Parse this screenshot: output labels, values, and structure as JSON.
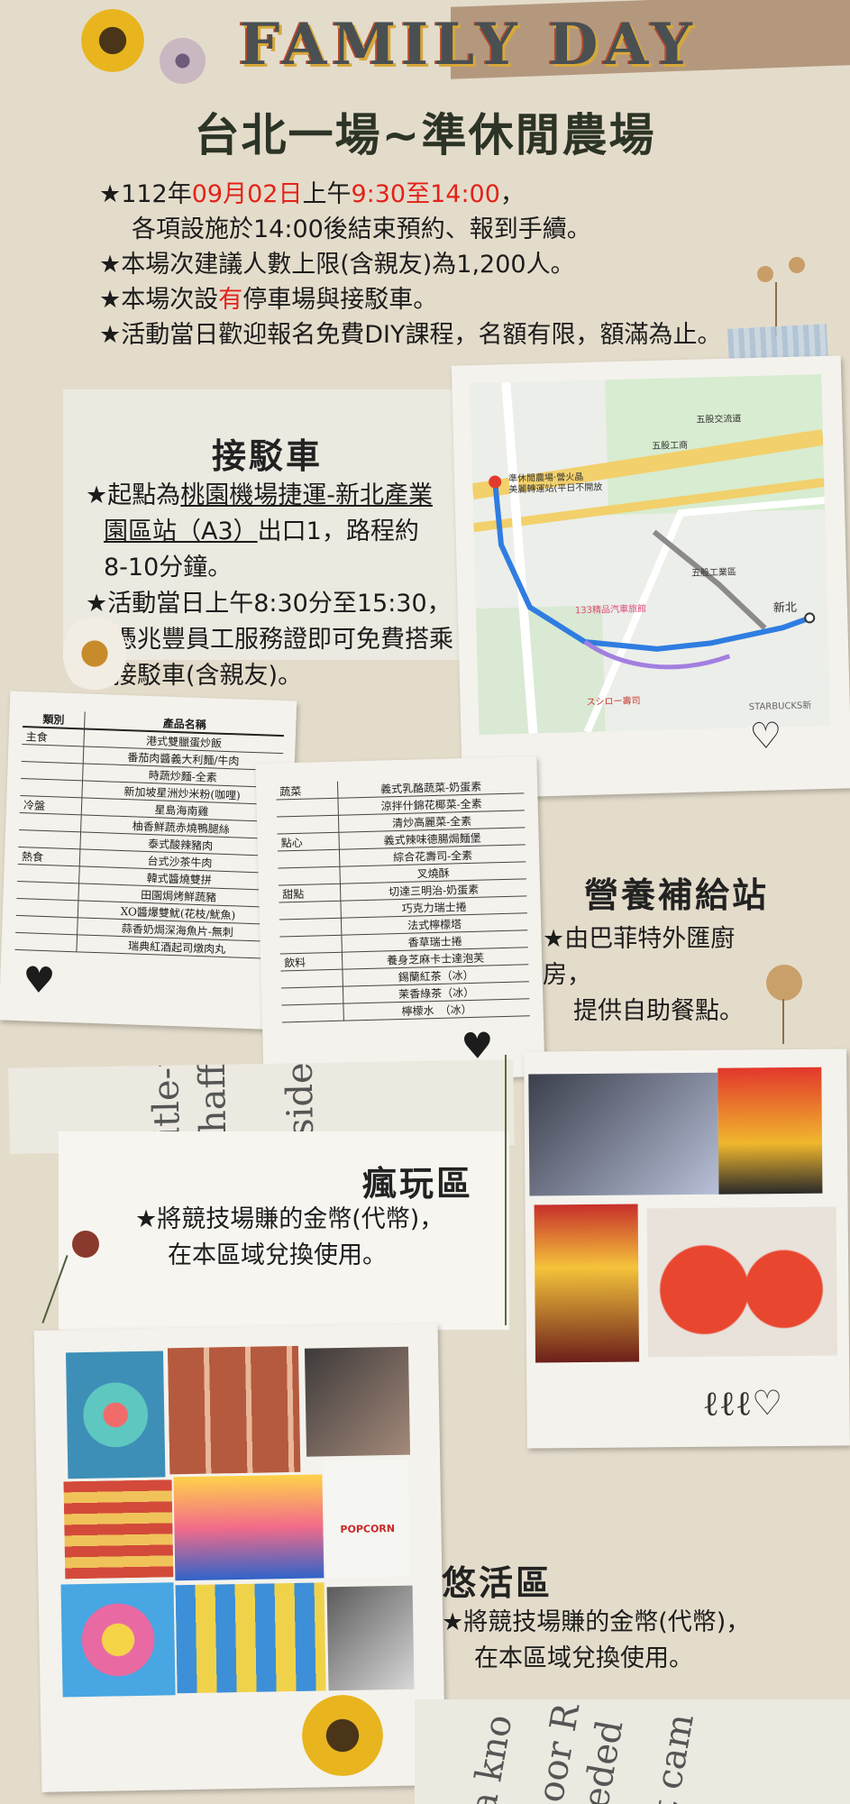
{
  "banner": {
    "title": "FAMILY DAY"
  },
  "page_title": "台北一場~準休閒農場",
  "intro": {
    "line1_a": "★112年",
    "line1_date": "09月02日",
    "line1_b": "上午",
    "line1_time": "9:30至14:00",
    "line1_c": "，",
    "line2": "各項設施於14:00後結束預約、報到手續。",
    "line3": "★本場次建議人數上限(含親友)為1,200人。",
    "line4_a": "★本場次設",
    "line4_red": "有",
    "line4_b": "停車場與接駁車。",
    "line5": "★活動當日歡迎報名免費DIY課程，名額有限，額滿為止。"
  },
  "shuttle": {
    "title": "接駁車",
    "p1_a": "★起點為",
    "p1_link1": "桃園機場捷運-新北產業",
    "p1_link2": "園區站（A3）",
    "p1_b": "出口1，路程約",
    "p1_c": "8-10分鐘。",
    "p2_a": "★活動當日上午8:30分至15:30，",
    "p2_b": "憑兆豐員工服務證即可免費搭乘",
    "p2_c": "接駁車(含親友)。"
  },
  "map": {
    "labels": {
      "station": "新北",
      "farm": "準休閒農場·營火晶",
      "farm2": "美麗轉運站(平日不開放",
      "park": "五股工商",
      "district": "五股工業區",
      "store": "STARBUCKS新",
      "hospital": "133精品汽車旅館",
      "sushi": "スシロー壽司",
      "road1": "五股交流道"
    }
  },
  "menu": {
    "header_cat": "類別",
    "header_item": "產品名稱",
    "left_rows": [
      {
        "cat": "主食",
        "item": "港式雙臘蛋炒飯"
      },
      {
        "cat": "",
        "item": "番茄肉醬義大利麵/牛肉"
      },
      {
        "cat": "",
        "item": "時蔬炒麵-全素"
      },
      {
        "cat": "",
        "item": "新加坡星洲炒米粉(咖哩)"
      },
      {
        "cat": "冷盤",
        "item": "星島海南雞"
      },
      {
        "cat": "",
        "item": "柚香鮮蔬赤燒鴨腿絲"
      },
      {
        "cat": "",
        "item": "泰式酸辣豬肉"
      },
      {
        "cat": "熱食",
        "item": "台式沙茶牛肉"
      },
      {
        "cat": "",
        "item": "韓式醬燒雙拼"
      },
      {
        "cat": "",
        "item": "田園焗烤鮮蔬豬"
      },
      {
        "cat": "",
        "item": "XO醬爆雙魷(花枝/魷魚)"
      },
      {
        "cat": "",
        "item": "蒜香奶焗深海魚片-無刺"
      },
      {
        "cat": "",
        "item": "瑞典紅酒起司燉肉丸"
      }
    ],
    "right_rows": [
      {
        "cat": "蔬菜",
        "item": "義式乳酪蔬菜-奶蛋素"
      },
      {
        "cat": "",
        "item": "涼拌什錦花椰菜-全素"
      },
      {
        "cat": "",
        "item": "清炒高麗菜-全素"
      },
      {
        "cat": "點心",
        "item": "義式辣味德腸焗麵堡"
      },
      {
        "cat": "",
        "item": "綜合花壽司-全素"
      },
      {
        "cat": "",
        "item": "叉燒酥"
      },
      {
        "cat": "甜點",
        "item": "切達三明治-奶蛋素"
      },
      {
        "cat": "",
        "item": "巧克力瑞士捲"
      },
      {
        "cat": "",
        "item": "法式檸檬塔"
      },
      {
        "cat": "",
        "item": "香草瑞士捲"
      },
      {
        "cat": "飲料",
        "item": "養身芝麻卡士達泡芙"
      },
      {
        "cat": "",
        "item": "錫蘭紅茶（冰）"
      },
      {
        "cat": "",
        "item": "茉香綠茶（冰）"
      },
      {
        "cat": "",
        "item": "檸檬水　（冰）"
      }
    ]
  },
  "nutrition": {
    "title": "營養補給站",
    "l1": "★由巴菲特外匯廚",
    "l2": "房，",
    "l3": "提供自助餐點。"
  },
  "crazy": {
    "title": "瘋玩區",
    "l1": "★將競技場賺的金幣(代幣)，",
    "l2": "在本區域兌換使用。"
  },
  "leisure": {
    "title": "悠活區",
    "l1": "★將競技場賺的金幣(代幣)，",
    "l2": "在本區域兌換使用。"
  },
  "decor_words": {
    "w1": "title-tr",
    "w2": "chaffi",
    "w3": "esides",
    "w4": "a kno",
    "w5": "poor R",
    "w6": "eded",
    "w7": "t cam"
  },
  "popcorn_label": "POPCORN",
  "colors": {
    "red": "#e2231a",
    "background": "#e4dccb",
    "title": "#2c3426"
  }
}
